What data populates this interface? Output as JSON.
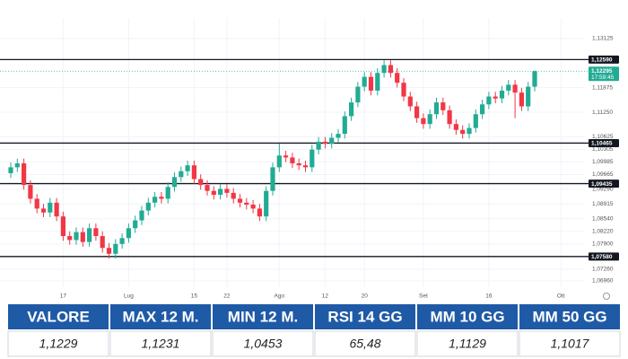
{
  "chart_data": {
    "type": "candlestick",
    "categories": [
      null,
      null,
      null,
      null,
      null,
      null,
      null,
      null,
      "17",
      null,
      null,
      null,
      null,
      null,
      null,
      null,
      null,
      null,
      "Lug",
      null,
      null,
      null,
      null,
      null,
      null,
      null,
      null,
      null,
      "15",
      null,
      null,
      null,
      null,
      "22",
      null,
      null,
      null,
      null,
      null,
      null,
      null,
      "Ago",
      null,
      null,
      null,
      null,
      null,
      null,
      "12",
      null,
      null,
      null,
      null,
      null,
      "20",
      null,
      null,
      null,
      null,
      null,
      null,
      null,
      null,
      "Set",
      null,
      null,
      null,
      null,
      null,
      null,
      null,
      null,
      null,
      "16",
      null,
      null,
      null,
      null,
      null,
      null,
      null,
      null,
      null,
      null,
      "Ott"
    ],
    "open": [
      1.097,
      1.0985,
      1.0995,
      1.094,
      1.0905,
      1.088,
      1.087,
      1.0895,
      1.086,
      1.081,
      1.08,
      1.082,
      1.0795,
      1.083,
      1.081,
      1.078,
      1.0765,
      1.079,
      1.0805,
      1.083,
      1.085,
      1.0875,
      1.0895,
      1.091,
      1.0905,
      1.0935,
      1.096,
      1.0975,
      1.099,
      1.0955,
      1.094,
      1.0925,
      1.0915,
      1.093,
      1.092,
      1.0905,
      1.0895,
      1.089,
      1.088,
      1.086,
      1.0925,
      1.0985,
      1.1015,
      1.101,
      1.0995,
      1.099,
      1.0985,
      1.103,
      1.105,
      1.1045,
      1.106,
      1.107,
      1.1115,
      1.115,
      1.119,
      1.1215,
      1.118,
      1.1225,
      1.1245,
      1.1225,
      1.12,
      1.1165,
      1.114,
      1.111,
      1.1095,
      1.112,
      1.115,
      1.113,
      1.1095,
      1.108,
      1.107,
      1.1085,
      1.112,
      1.1145,
      1.1165,
      1.116,
      1.118,
      1.1195,
      1.1175,
      1.114,
      1.119,
      null,
      null,
      null,
      null
    ],
    "high": [
      1.0997,
      1.1007,
      1.1007,
      1.0952,
      1.0917,
      1.0892,
      1.0907,
      1.0907,
      1.0872,
      1.0822,
      1.0832,
      1.0832,
      1.0842,
      1.0842,
      1.0822,
      1.0792,
      1.0802,
      1.0817,
      1.0842,
      1.0862,
      1.0887,
      1.0907,
      1.0922,
      1.0922,
      1.0947,
      1.0972,
      1.0987,
      1.1002,
      1.1002,
      1.0967,
      1.0952,
      1.0937,
      1.0942,
      1.0942,
      1.0932,
      1.0917,
      1.0907,
      1.0902,
      1.0892,
      1.0937,
      1.0997,
      1.1045,
      1.1027,
      1.1022,
      1.1007,
      1.1002,
      1.1042,
      1.1062,
      1.1062,
      1.1072,
      1.1082,
      1.1127,
      1.1162,
      1.1202,
      1.1227,
      1.1227,
      1.1237,
      1.1257,
      1.1257,
      1.1237,
      1.1212,
      1.1177,
      1.1152,
      1.1122,
      1.1132,
      1.1162,
      1.1162,
      1.1142,
      1.1107,
      1.1092,
      1.1097,
      1.1132,
      1.1157,
      1.1177,
      1.1177,
      1.1192,
      1.1207,
      1.1207,
      1.1187,
      1.1202,
      1.1231,
      null,
      null,
      null,
      null
    ],
    "low": [
      1.0958,
      1.0973,
      1.0928,
      1.0893,
      1.0868,
      1.0858,
      1.0858,
      1.0848,
      1.0798,
      1.0788,
      1.0788,
      1.0783,
      1.0783,
      1.0798,
      1.0768,
      1.0753,
      1.0753,
      1.0778,
      1.0793,
      1.0818,
      1.0838,
      1.0863,
      1.0883,
      1.0893,
      1.0893,
      1.0923,
      1.0948,
      1.0963,
      1.0943,
      1.0928,
      1.0913,
      1.0903,
      1.0903,
      1.0908,
      1.0893,
      1.0883,
      1.0878,
      1.0868,
      1.0848,
      1.0848,
      1.0913,
      1.0973,
      1.0998,
      1.0983,
      1.0978,
      1.0973,
      1.0973,
      1.1018,
      1.1033,
      1.1033,
      1.1048,
      1.1058,
      1.1103,
      1.1138,
      1.1178,
      1.1168,
      1.1168,
      1.1213,
      1.1213,
      1.1188,
      1.1153,
      1.1128,
      1.1098,
      1.1083,
      1.1083,
      1.1108,
      1.1118,
      1.1083,
      1.1068,
      1.1058,
      1.1058,
      1.1073,
      1.1108,
      1.1133,
      1.1148,
      1.1148,
      1.1168,
      1.111,
      1.1128,
      1.1128,
      1.1178,
      null,
      null,
      null,
      null
    ],
    "close": [
      1.0985,
      1.0995,
      1.094,
      1.0905,
      1.088,
      1.087,
      1.0895,
      1.086,
      1.081,
      1.08,
      1.082,
      1.0795,
      1.083,
      1.081,
      1.078,
      1.0765,
      1.079,
      1.0805,
      1.083,
      1.085,
      1.0875,
      1.0895,
      1.091,
      1.0905,
      1.0935,
      1.096,
      1.0975,
      1.099,
      1.0955,
      1.094,
      1.0925,
      1.0915,
      1.093,
      1.092,
      1.0905,
      1.0895,
      1.089,
      1.088,
      1.086,
      1.0925,
      1.0985,
      1.1015,
      1.101,
      1.0995,
      1.099,
      1.0985,
      1.103,
      1.105,
      1.1045,
      1.106,
      1.107,
      1.1115,
      1.115,
      1.119,
      1.1215,
      1.118,
      1.1225,
      1.1245,
      1.1225,
      1.12,
      1.1165,
      1.114,
      1.111,
      1.1095,
      1.112,
      1.115,
      1.113,
      1.1095,
      1.108,
      1.107,
      1.1085,
      1.112,
      1.1145,
      1.1165,
      1.116,
      1.118,
      1.1195,
      1.1175,
      1.114,
      1.119,
      1.12295,
      null,
      null,
      null,
      null
    ],
    "colors": {
      "up": "#22ab94",
      "down": "#f23645",
      "level": "#131722"
    },
    "ylim": [
      1.068,
      1.1342
    ],
    "yticks": [
      {
        "value": 1.13125,
        "label": "1,13125"
      },
      {
        "value": 1.11875,
        "label": "1,11875"
      },
      {
        "value": 1.1125,
        "label": "1,11250"
      },
      {
        "value": 1.10625,
        "label": "1,10625"
      },
      {
        "value": 1.10305,
        "label": "1,10305"
      },
      {
        "value": 1.09985,
        "label": "1,09985"
      },
      {
        "value": 1.09665,
        "label": "1,09665"
      },
      {
        "value": 1.0929,
        "label": "1,09290"
      },
      {
        "value": 1.08915,
        "label": "1,08915"
      },
      {
        "value": 1.0854,
        "label": "1,08540"
      },
      {
        "value": 1.0822,
        "label": "1,08220"
      },
      {
        "value": 1.079,
        "label": "1,07900"
      },
      {
        "value": 1.0726,
        "label": "1,07260"
      },
      {
        "value": 1.0696,
        "label": "1,06960"
      }
    ],
    "levels": [
      {
        "value": 1.1259,
        "label": "1,12590"
      },
      {
        "value": 1.10465,
        "label": "1,10465"
      },
      {
        "value": 1.09435,
        "label": "1,09435"
      },
      {
        "value": 1.0758,
        "label": "1,07580"
      }
    ],
    "last_price": {
      "value": 1.12295,
      "label": "1,12295",
      "countdown": "17:59:45"
    },
    "grid": true
  },
  "table": {
    "header": [
      "VALORE",
      "MAX 12 M.",
      "MIN 12 M.",
      "RSI 14 GG",
      "MM 10 GG",
      "MM 50 GG"
    ],
    "rows": [
      [
        "1,1229",
        "1,1231",
        "1,0453",
        "65,48",
        "1,1129",
        "1,1017"
      ]
    ],
    "color": "#1f5aa6"
  }
}
